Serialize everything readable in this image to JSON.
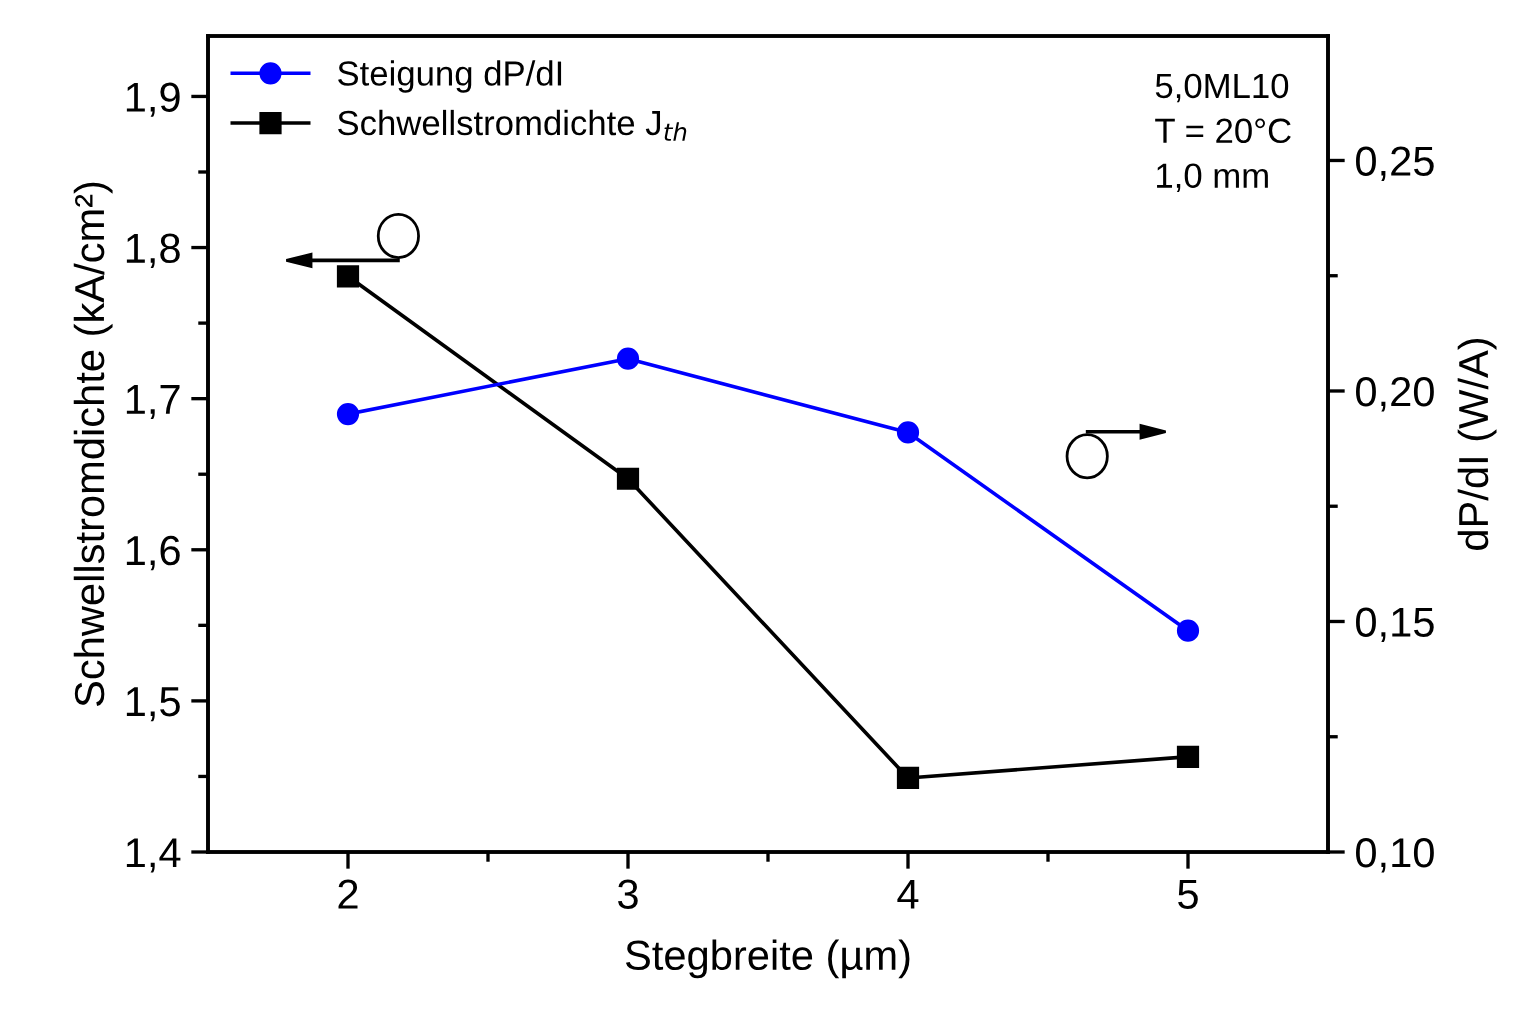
{
  "chart_data": {
    "type": "line",
    "xlabel": "Stegbreite (µm)",
    "ylabel": "Schwellstromdichte (kA/cm²)",
    "y2label": "dP/dI (W/A)",
    "x": [
      2,
      3,
      4,
      5
    ],
    "series": [
      {
        "name": "Steigung dP/dI",
        "color": "#0000ff",
        "marker": "circle",
        "axis": "y2",
        "values": [
          0.195,
          0.207,
          0.191,
          0.148
        ]
      },
      {
        "name": "Schwellstromdichte J$_{th}$",
        "color": "#000000",
        "marker": "square",
        "values": [
          1.781,
          1.647,
          1.449,
          1.463
        ]
      }
    ],
    "xlim": [
      1.5,
      5.5
    ],
    "xticks": [
      2,
      3,
      4,
      5
    ],
    "ylim": [
      1.4,
      1.94
    ],
    "yticks": [
      {
        "value": 1.4,
        "label": "1,4"
      },
      {
        "value": 1.5,
        "label": "1,5"
      },
      {
        "value": 1.6,
        "label": "1,6"
      },
      {
        "value": 1.7,
        "label": "1,7"
      },
      {
        "value": 1.8,
        "label": "1,8"
      },
      {
        "value": 1.9,
        "label": "1,9"
      }
    ],
    "y2lim": [
      0.1,
      0.277
    ],
    "y2ticks": [
      {
        "value": 0.1,
        "label": "0,10"
      },
      {
        "value": 0.15,
        "label": "0,15"
      },
      {
        "value": 0.2,
        "label": "0,20"
      },
      {
        "value": 0.25,
        "label": "0,25"
      }
    ],
    "annotations": [
      "5,0ML10",
      "T = 20°C",
      "1,0 mm"
    ],
    "legend": "top left",
    "grid": false,
    "line_style": "solid"
  }
}
